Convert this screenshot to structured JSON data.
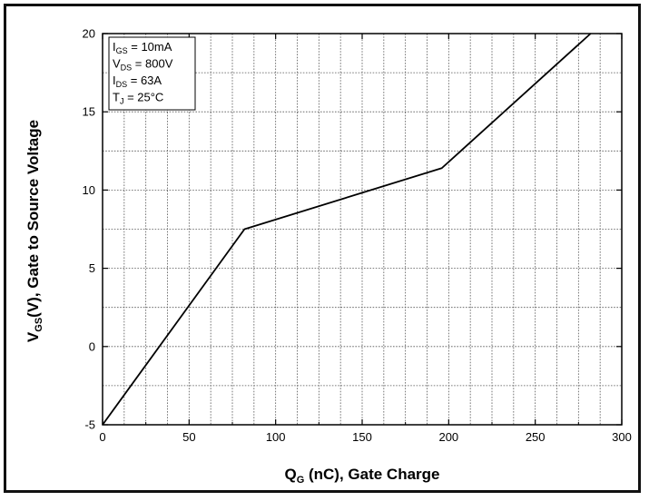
{
  "chart_data": {
    "type": "line",
    "xlabel": {
      "main": "Q",
      "sub": "G",
      "rest": " (nC), Gate Charge"
    },
    "ylabel": {
      "main": "V",
      "sub": "GS",
      "rest": "(V), Gate to Source Voltage"
    },
    "xlim": [
      0,
      300
    ],
    "ylim": [
      -5,
      20
    ],
    "xticks": [
      "0",
      "50",
      "100",
      "150",
      "200",
      "250",
      "300"
    ],
    "yticks": [
      "-5",
      "0",
      "5",
      "10",
      "15",
      "20"
    ],
    "grid": true,
    "series": [
      {
        "x": [
          0,
          82,
          196,
          282
        ],
        "y": [
          -5,
          7.5,
          11.4,
          20
        ]
      }
    ],
    "legend_box": [
      {
        "main": "I",
        "sub": "GS",
        "rest": " = 10mA"
      },
      {
        "main": "V",
        "sub": "DS",
        "rest": " = 800V"
      },
      {
        "main": "I",
        "sub": "DS",
        "rest": " = 63A"
      },
      {
        "main": "T",
        "sub": "J",
        "rest": " = 25°C"
      }
    ]
  }
}
